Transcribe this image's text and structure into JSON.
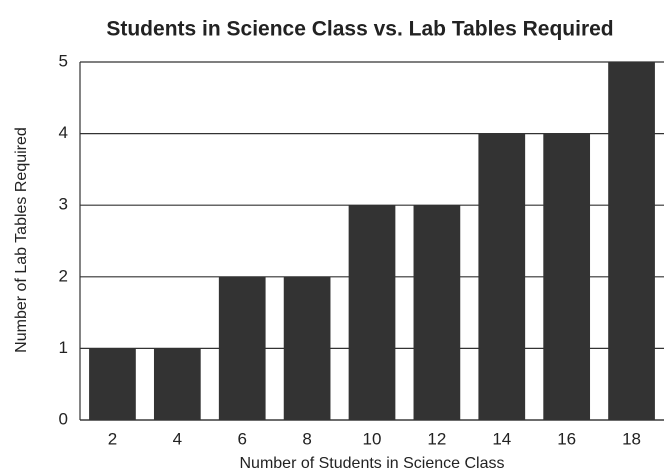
{
  "chart_data": {
    "type": "bar",
    "title": "Students in Science Class vs. Lab Tables Required",
    "x_label": "Number of Students in Science Class",
    "y_label": "Number of Lab Tables Required",
    "categories": [
      2,
      4,
      6,
      8,
      10,
      12,
      14,
      16,
      18
    ],
    "values": [
      1,
      1,
      2,
      2,
      3,
      3,
      4,
      4,
      5
    ],
    "color": "#333333",
    "ylim": [
      0,
      5
    ],
    "yticks": [
      0,
      1,
      2,
      3,
      4,
      5
    ],
    "grid": true
  }
}
